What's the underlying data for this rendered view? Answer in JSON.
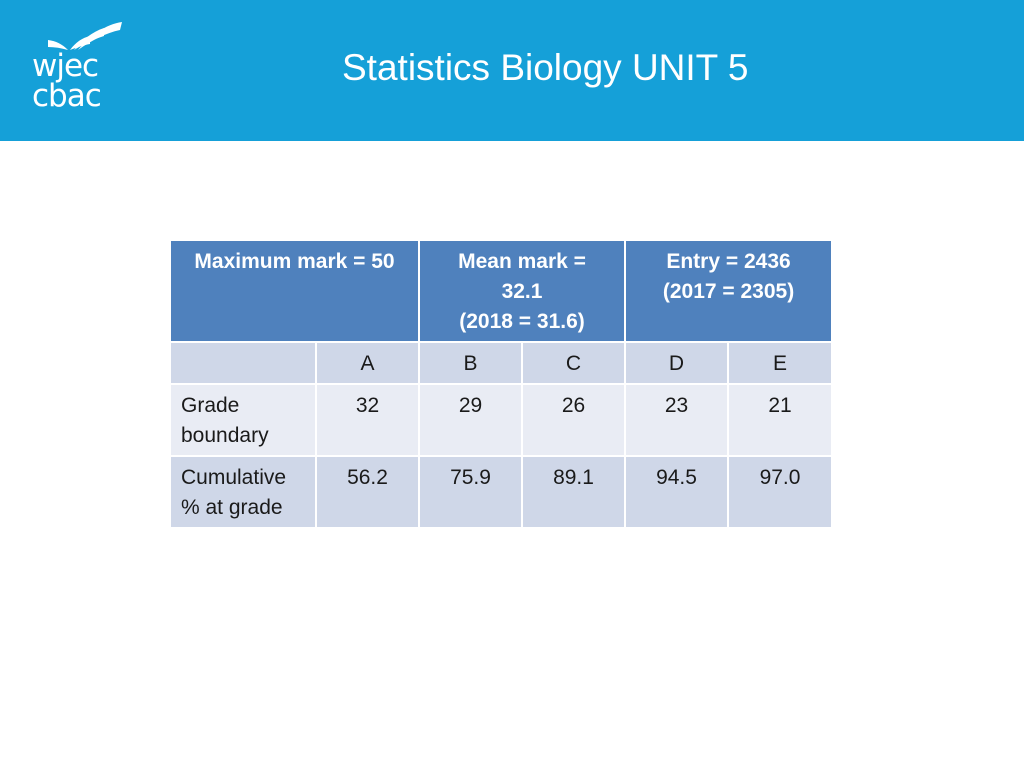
{
  "header": {
    "title": "Statistics Biology UNIT 5",
    "logo": {
      "line1": "wjec",
      "line2": "cbac",
      "icon": "open-book-icon"
    },
    "background_color": "#15a0d8"
  },
  "table": {
    "header": {
      "max_mark": "Maximum mark = 50",
      "mean_mark_line1": "Mean mark =",
      "mean_mark_line2": "32.1",
      "mean_mark_line3": "(2018 = 31.6)",
      "entry_line1": "Entry = 2436",
      "entry_line2": "(2017 = 2305)"
    },
    "grades": [
      "A",
      "B",
      "C",
      "D",
      "E"
    ],
    "rows": [
      {
        "label_line1": "Grade",
        "label_line2": "boundary",
        "values": [
          "32",
          "29",
          "26",
          "23",
          "21"
        ]
      },
      {
        "label_line1": "Cumulative",
        "label_line2": "% at grade",
        "values": [
          "56.2",
          "75.9",
          "89.1",
          "94.5",
          "97.0"
        ]
      }
    ],
    "header_color": "#4f81bd",
    "row_color_dark": "#cfd7e8",
    "row_color_light": "#e9ecf4"
  }
}
